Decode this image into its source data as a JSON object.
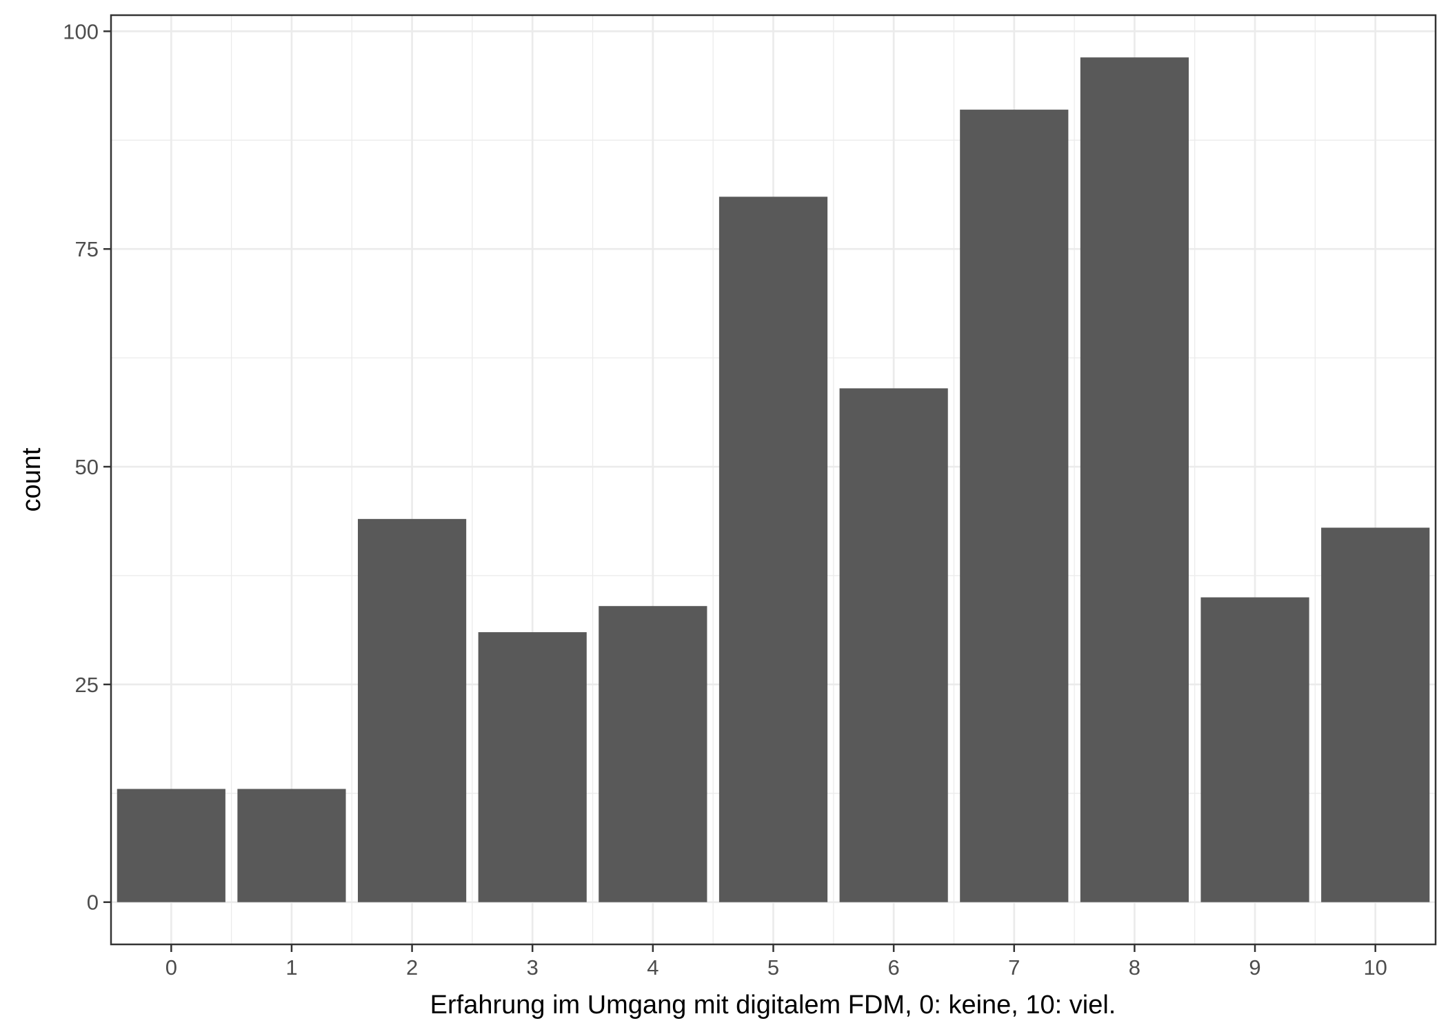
{
  "chart_data": {
    "type": "bar",
    "title": "",
    "xlabel": "Erfahrung im Umgang mit digitalem FDM, 0: keine, 10: viel.",
    "ylabel": "count",
    "categories": [
      "0",
      "1",
      "2",
      "3",
      "4",
      "5",
      "6",
      "7",
      "8",
      "9",
      "10"
    ],
    "values": [
      13,
      13,
      44,
      31,
      34,
      81,
      59,
      91,
      97,
      35,
      43
    ],
    "yticks": [
      0,
      25,
      50,
      75,
      100
    ],
    "ylim": [
      -4.85,
      101.85
    ],
    "grid": true,
    "bar_color": "#595959",
    "panel_border_color": "#333333",
    "grid_color": "#ebebeb"
  }
}
